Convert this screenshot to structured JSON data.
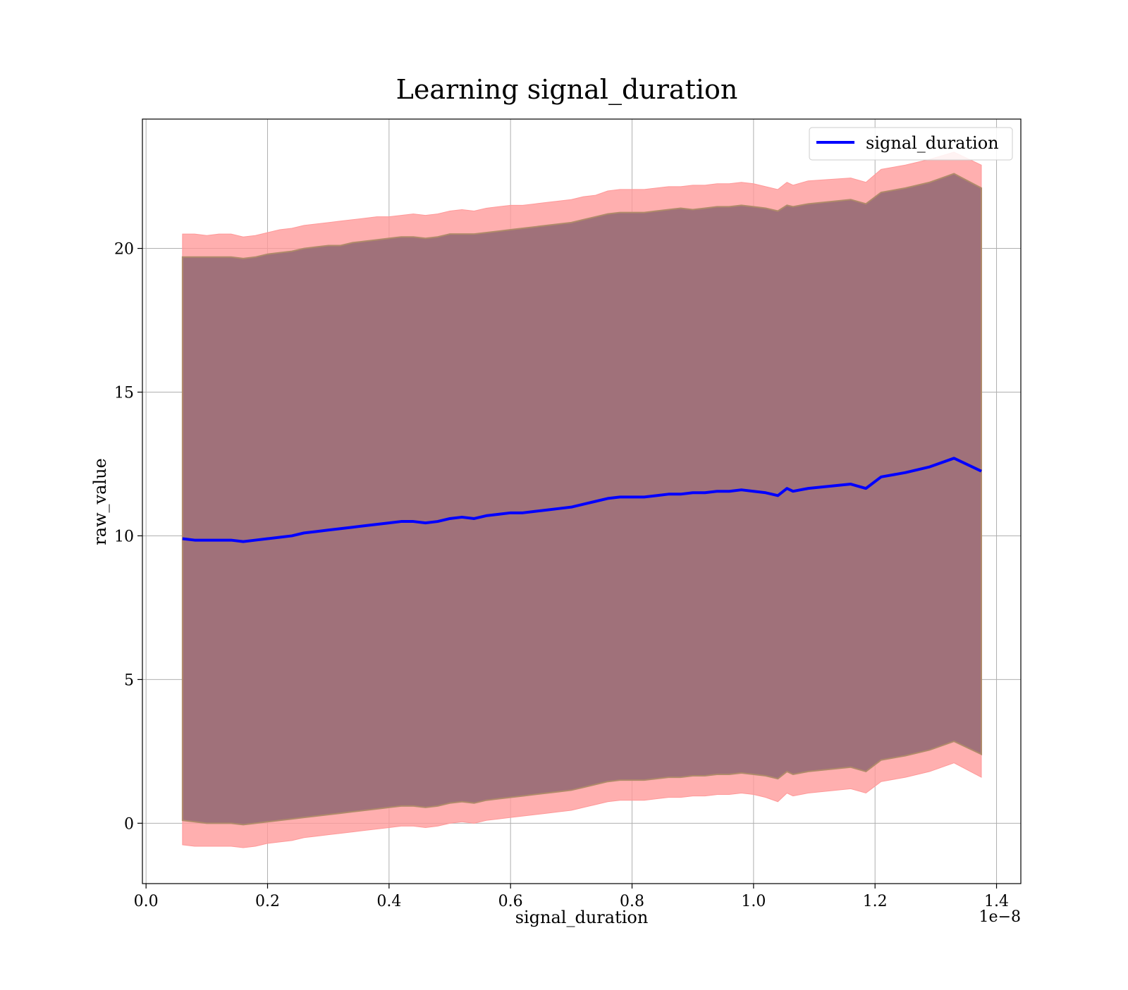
{
  "chart_data": {
    "type": "line",
    "title": "Learning signal_duration",
    "xlabel": "signal_duration",
    "ylabel": "raw_value",
    "x_offset_text": "1e−8",
    "xlim": [
      -0.006,
      1.44
    ],
    "ylim": [
      -2.1,
      24.5
    ],
    "x_ticks": [
      0.0,
      0.2,
      0.4,
      0.6,
      0.8,
      1.0,
      1.2,
      1.4
    ],
    "x_tick_labels": [
      "0.0",
      "0.2",
      "0.4",
      "0.6",
      "0.8",
      "1.0",
      "1.2",
      "1.4"
    ],
    "y_ticks": [
      0,
      5,
      10,
      15,
      20
    ],
    "y_tick_labels": [
      "0",
      "5",
      "10",
      "15",
      "20"
    ],
    "grid": true,
    "legend_position": "top-right",
    "colors": {
      "line": "#0000ff",
      "outer_band": "#ff9999",
      "inner_band": "#a0717a",
      "inner_band_edge": "#b08a6a"
    },
    "series": [
      {
        "name": "signal_duration",
        "x": [
          0.06,
          0.08,
          0.1,
          0.12,
          0.14,
          0.16,
          0.18,
          0.2,
          0.22,
          0.24,
          0.26,
          0.28,
          0.3,
          0.32,
          0.34,
          0.36,
          0.38,
          0.4,
          0.42,
          0.44,
          0.46,
          0.48,
          0.5,
          0.52,
          0.54,
          0.56,
          0.58,
          0.6,
          0.62,
          0.64,
          0.66,
          0.68,
          0.7,
          0.72,
          0.74,
          0.76,
          0.78,
          0.8,
          0.82,
          0.84,
          0.86,
          0.88,
          0.9,
          0.92,
          0.94,
          0.96,
          0.98,
          1.0,
          1.02,
          1.04,
          1.055,
          1.065,
          1.09,
          1.16,
          1.185,
          1.21,
          1.25,
          1.29,
          1.33,
          1.375
        ],
        "y": [
          9.9,
          9.85,
          9.85,
          9.85,
          9.85,
          9.8,
          9.85,
          9.9,
          9.95,
          10.0,
          10.1,
          10.15,
          10.2,
          10.25,
          10.3,
          10.35,
          10.4,
          10.45,
          10.5,
          10.5,
          10.45,
          10.5,
          10.6,
          10.65,
          10.6,
          10.7,
          10.75,
          10.8,
          10.8,
          10.85,
          10.9,
          10.95,
          11.0,
          11.1,
          11.2,
          11.3,
          11.35,
          11.35,
          11.35,
          11.4,
          11.45,
          11.45,
          11.5,
          11.5,
          11.55,
          11.55,
          11.6,
          11.55,
          11.5,
          11.4,
          11.65,
          11.55,
          11.65,
          11.8,
          11.65,
          12.05,
          12.2,
          12.4,
          12.7,
          12.25
        ],
        "inner_upper": [
          19.7,
          19.7,
          19.7,
          19.7,
          19.7,
          19.65,
          19.7,
          19.8,
          19.85,
          19.9,
          20.0,
          20.05,
          20.1,
          20.1,
          20.2,
          20.25,
          20.3,
          20.35,
          20.4,
          20.4,
          20.35,
          20.4,
          20.5,
          20.5,
          20.5,
          20.55,
          20.6,
          20.65,
          20.7,
          20.75,
          20.8,
          20.85,
          20.9,
          21.0,
          21.1,
          21.2,
          21.25,
          21.25,
          21.25,
          21.3,
          21.35,
          21.4,
          21.35,
          21.4,
          21.45,
          21.45,
          21.5,
          21.45,
          21.4,
          21.3,
          21.5,
          21.45,
          21.55,
          21.7,
          21.55,
          21.95,
          22.1,
          22.3,
          22.6,
          22.1
        ],
        "inner_lower": [
          0.1,
          0.05,
          0.0,
          0.0,
          0.0,
          -0.05,
          0.0,
          0.05,
          0.1,
          0.15,
          0.2,
          0.25,
          0.3,
          0.35,
          0.4,
          0.45,
          0.5,
          0.55,
          0.6,
          0.6,
          0.55,
          0.6,
          0.7,
          0.75,
          0.7,
          0.8,
          0.85,
          0.9,
          0.95,
          1.0,
          1.05,
          1.1,
          1.15,
          1.25,
          1.35,
          1.45,
          1.5,
          1.5,
          1.5,
          1.55,
          1.6,
          1.6,
          1.65,
          1.65,
          1.7,
          1.7,
          1.75,
          1.7,
          1.65,
          1.55,
          1.8,
          1.7,
          1.8,
          1.95,
          1.8,
          2.2,
          2.35,
          2.55,
          2.85,
          2.4
        ],
        "outer_upper": [
          20.5,
          20.5,
          20.45,
          20.5,
          20.5,
          20.4,
          20.45,
          20.55,
          20.65,
          20.7,
          20.8,
          20.85,
          20.9,
          20.95,
          21.0,
          21.05,
          21.1,
          21.1,
          21.15,
          21.2,
          21.15,
          21.2,
          21.3,
          21.35,
          21.3,
          21.4,
          21.45,
          21.5,
          21.5,
          21.55,
          21.6,
          21.65,
          21.7,
          21.8,
          21.85,
          22.0,
          22.05,
          22.05,
          22.05,
          22.1,
          22.15,
          22.15,
          22.2,
          22.2,
          22.25,
          22.25,
          22.3,
          22.25,
          22.15,
          22.05,
          22.3,
          22.2,
          22.35,
          22.45,
          22.3,
          22.75,
          22.9,
          23.1,
          23.35,
          22.9
        ],
        "outer_lower": [
          -0.75,
          -0.8,
          -0.8,
          -0.8,
          -0.8,
          -0.85,
          -0.8,
          -0.7,
          -0.65,
          -0.6,
          -0.5,
          -0.45,
          -0.4,
          -0.35,
          -0.3,
          -0.25,
          -0.2,
          -0.15,
          -0.1,
          -0.1,
          -0.15,
          -0.1,
          0.0,
          0.05,
          0.0,
          0.1,
          0.15,
          0.2,
          0.25,
          0.3,
          0.35,
          0.4,
          0.45,
          0.55,
          0.65,
          0.75,
          0.8,
          0.8,
          0.8,
          0.85,
          0.9,
          0.9,
          0.95,
          0.95,
          1.0,
          1.0,
          1.05,
          1.0,
          0.9,
          0.75,
          1.05,
          0.95,
          1.05,
          1.2,
          1.05,
          1.45,
          1.6,
          1.8,
          2.1,
          1.6
        ]
      }
    ]
  }
}
